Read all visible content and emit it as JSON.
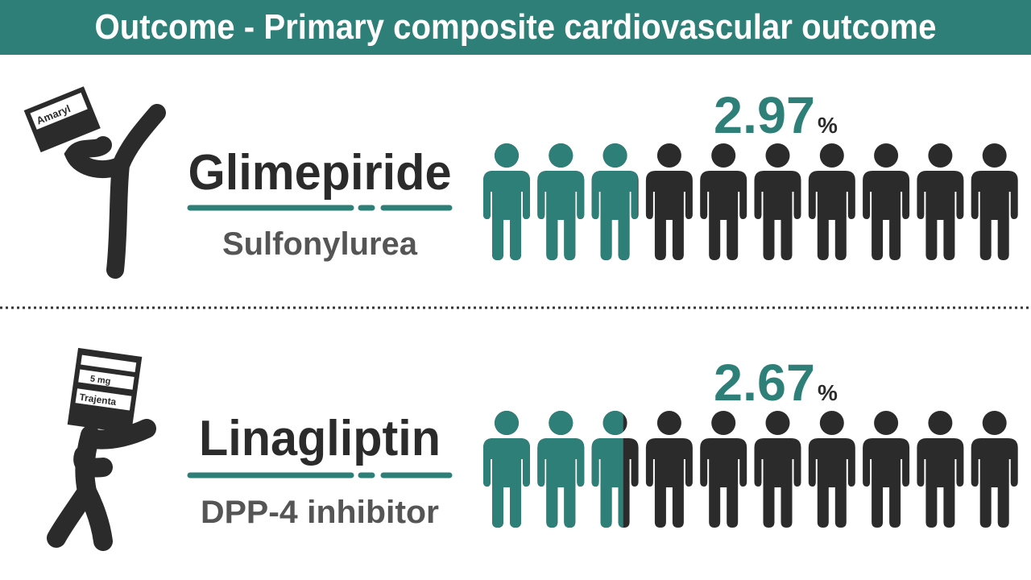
{
  "header": {
    "title": "Outcome - Primary composite cardiovascular outcome"
  },
  "drugs": [
    {
      "name": "Glimepiride",
      "class": "Sulfonylurea",
      "box_label": "Amaryl",
      "value": 2.97,
      "unit": "%"
    },
    {
      "name": "Linagliptin",
      "class": "DPP-4 inhibitor",
      "box_label": "Trajenta",
      "box_dose": "5 mg",
      "value": 2.67,
      "unit": "%"
    }
  ]
}
